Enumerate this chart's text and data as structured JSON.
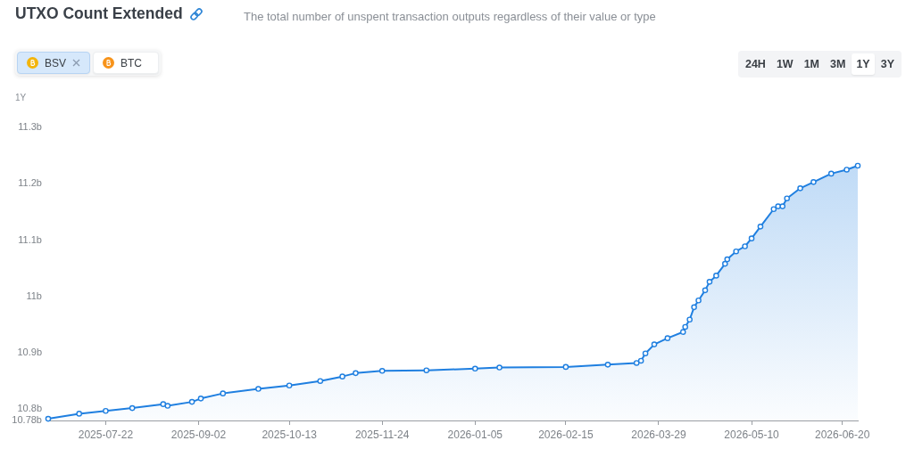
{
  "chart_data": {
    "type": "area",
    "title": "UTXO Count Extended",
    "subtitle": "The total number of unspent transaction outputs regardless of their value or type",
    "ylabel": "1Y",
    "annotations": [
      "BSV",
      "BTC",
      "24H",
      "1W",
      "1M",
      "3M",
      "1Y",
      "3Y"
    ],
    "x": [
      "2025-06-26",
      "2025-07-10",
      "2025-07-22",
      "2025-08-03",
      "2025-08-17",
      "2025-08-19",
      "2025-08-30",
      "2025-09-03",
      "2025-09-13",
      "2025-09-29",
      "2025-10-13",
      "2025-10-27",
      "2025-11-06",
      "2025-11-12",
      "2025-11-24",
      "2025-12-14",
      "2026-01-05",
      "2026-01-16",
      "2026-02-15",
      "2026-03-06",
      "2026-03-19",
      "2026-03-21",
      "2026-03-23",
      "2026-03-27",
      "2026-04-02",
      "2026-04-09",
      "2026-04-10",
      "2026-04-12",
      "2026-04-14",
      "2026-04-16",
      "2026-04-19",
      "2026-04-21",
      "2026-04-24",
      "2026-04-28",
      "2026-04-29",
      "2026-05-03",
      "2026-05-07",
      "2026-05-10",
      "2026-05-14",
      "2026-05-20",
      "2026-05-22",
      "2026-05-24",
      "2026-05-26",
      "2026-06-01",
      "2026-06-07",
      "2026-06-15",
      "2026-06-22",
      "2026-06-27"
    ],
    "values": [
      10.783,
      10.792,
      10.797,
      10.802,
      10.809,
      10.806,
      10.813,
      10.819,
      10.828,
      10.836,
      10.842,
      10.85,
      10.858,
      10.864,
      10.868,
      10.869,
      10.872,
      10.874,
      10.875,
      10.879,
      10.882,
      10.886,
      10.899,
      10.915,
      10.926,
      10.937,
      10.946,
      10.959,
      10.981,
      10.993,
      11.011,
      11.026,
      11.037,
      11.058,
      11.066,
      11.08,
      11.089,
      11.103,
      11.124,
      11.155,
      11.16,
      11.16,
      11.174,
      11.192,
      11.203,
      11.218,
      11.225,
      11.232
    ],
    "color": "#1f7fe0",
    "marker": "circle",
    "xlim": [
      "2025-06-26",
      "2026-06-27"
    ],
    "xticks": [
      "2025-07-22",
      "2025-09-02",
      "2025-10-13",
      "2025-11-24",
      "2026-01-05",
      "2026-02-15",
      "2026-03-29",
      "2026-05-10",
      "2026-06-20"
    ],
    "ylim": [
      10.78,
      11.3
    ],
    "yticks": [
      {
        "value": 10.78,
        "label": "10.78b"
      },
      {
        "value": 10.8,
        "label": "10.8b"
      },
      {
        "value": 10.9,
        "label": "10.9b"
      },
      {
        "value": 11,
        "label": "11b"
      },
      {
        "value": 11.1,
        "label": "11.1b"
      },
      {
        "value": 11.2,
        "label": "11.2b"
      },
      {
        "value": 11.3,
        "label": "11.3b"
      }
    ]
  }
}
